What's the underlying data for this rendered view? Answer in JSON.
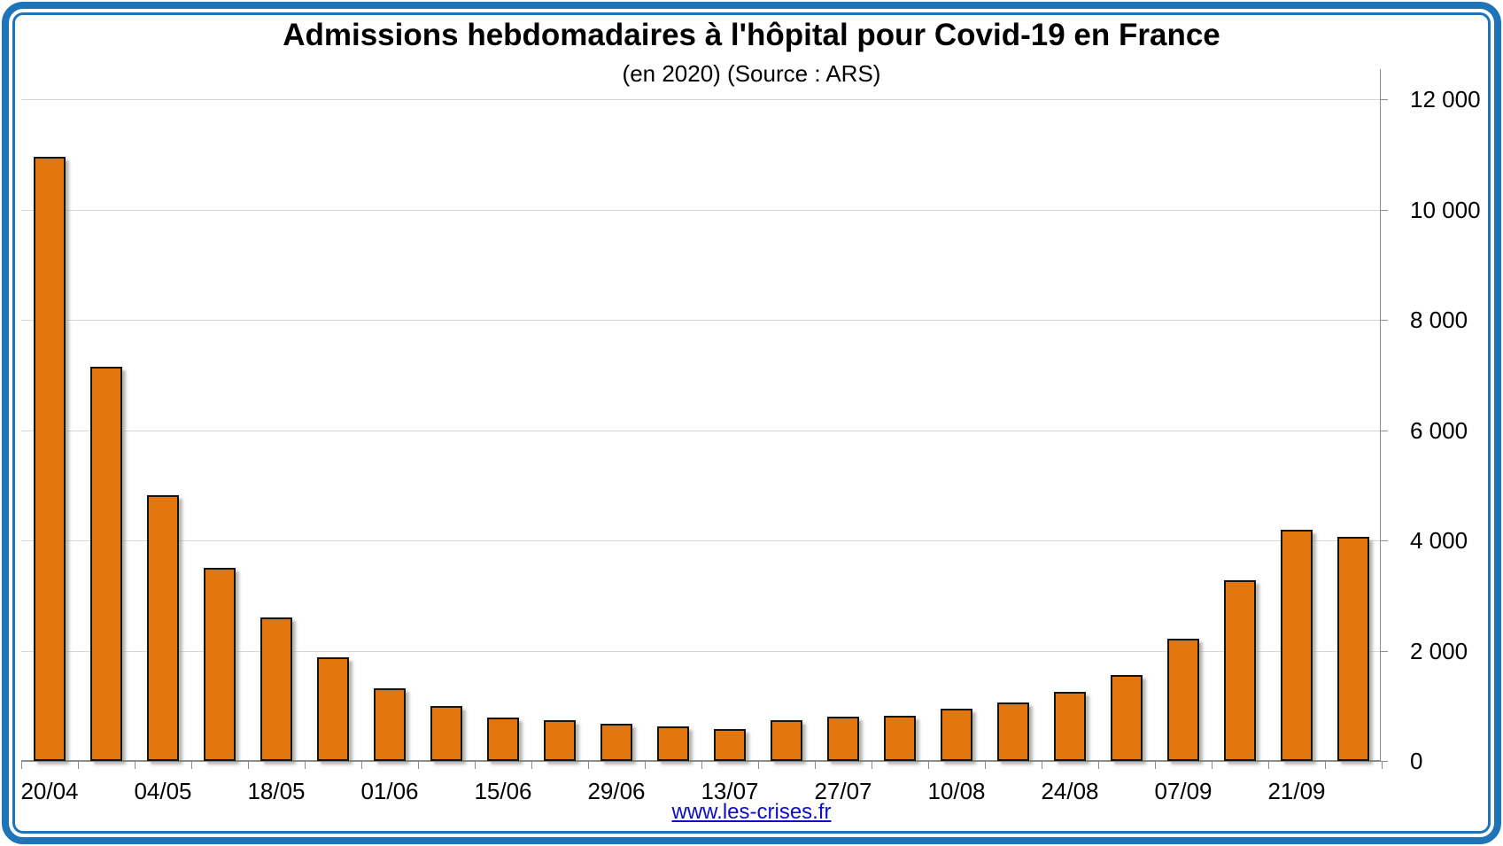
{
  "chart_data": {
    "type": "bar",
    "title": "Admissions hebdomadaires à l'hôpital pour Covid-19 en France",
    "subtitle": "(en 2020) (Source : ARS)",
    "x_tick_labels": [
      "20/04",
      "04/05",
      "18/05",
      "01/06",
      "15/06",
      "29/06",
      "13/07",
      "27/07",
      "10/08",
      "24/08",
      "07/09",
      "21/09"
    ],
    "bar_labels": [
      "20/04",
      "",
      "04/05",
      "",
      "18/05",
      "",
      "01/06",
      "",
      "15/06",
      "",
      "29/06",
      "",
      "13/07",
      "",
      "27/07",
      "",
      "10/08",
      "",
      "24/08",
      "",
      "07/09",
      "",
      "21/09",
      ""
    ],
    "values": [
      10950,
      7150,
      4820,
      3500,
      2600,
      1880,
      1320,
      1000,
      790,
      740,
      670,
      630,
      580,
      740,
      800,
      820,
      950,
      1060,
      1250,
      1560,
      2220,
      3280,
      4190,
      4060
    ],
    "y_tick_values": [
      0,
      2000,
      4000,
      6000,
      8000,
      10000,
      12000
    ],
    "y_tick_labels": [
      "0",
      "2 000",
      "4 000",
      "6 000",
      "8 000",
      "10 000",
      "12 000"
    ],
    "ylim": [
      0,
      12000
    ],
    "y_axis_side": "right",
    "grid": "horizontal",
    "legend": "none"
  },
  "footer": {
    "link_text": "www.les-crises.fr"
  },
  "colors": {
    "bar_fill": "#E2750C",
    "bar_border": "#141414",
    "frame_blue": "#1D74B8",
    "gridline": "#D9D9D9",
    "axis_gray": "#8C8C8C",
    "link_blue": "#0D0DC8"
  }
}
